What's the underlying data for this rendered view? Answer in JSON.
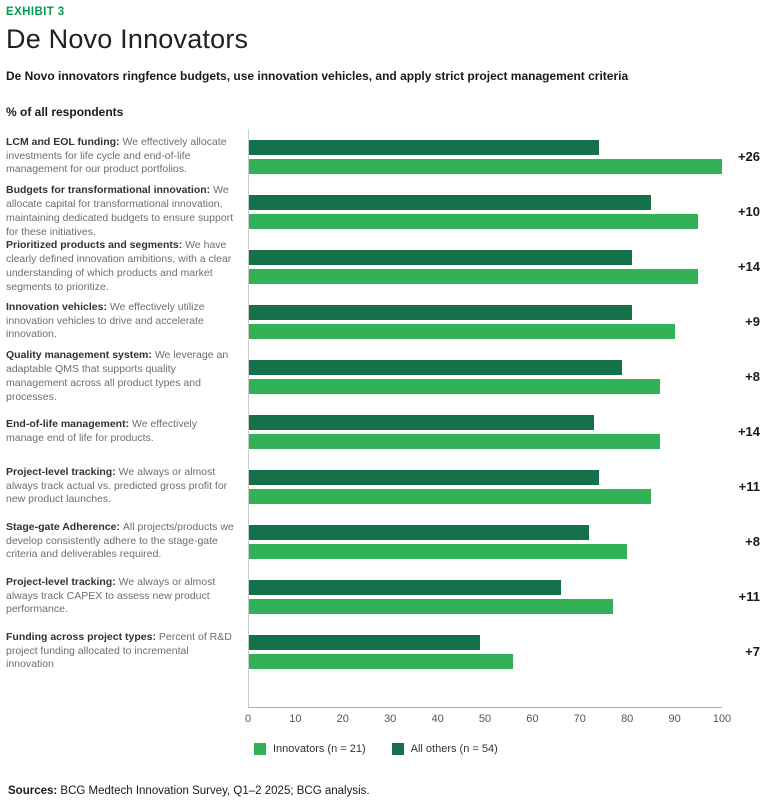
{
  "exhibit_label": "EXHIBIT 3",
  "title": "De Novo Innovators",
  "subtitle": "De Novo innovators ringfence budgets, use innovation vehicles, and apply strict project management criteria",
  "axis_title": "% of all respondents",
  "colors": {
    "accent": "#009B4F",
    "innovators": "#32B256",
    "all_others": "#15714A"
  },
  "chart_data": {
    "type": "bar",
    "orientation": "horizontal",
    "title": "De Novo Innovators",
    "xlabel": "% of all respondents",
    "xlim": [
      0,
      100
    ],
    "x_ticks": [
      0,
      10,
      20,
      30,
      40,
      50,
      60,
      70,
      80,
      90,
      100
    ],
    "grid": false,
    "legend_position": "bottom",
    "series_order": [
      "All others (n = 54)",
      "Innovators (n = 21)"
    ],
    "rows": [
      {
        "label_bold": "LCM and EOL funding:",
        "label_text": "We effectively allocate investments for life cycle and end-of-life management for our product portfolios.",
        "innovators": 100,
        "all_others": 74,
        "delta": "+26"
      },
      {
        "label_bold": "Budgets for transformational innovation:",
        "label_text": "We allocate capital for transformational innovation, maintaining dedicated budgets to ensure support for these initiatives.",
        "innovators": 95,
        "all_others": 85,
        "delta": "+10"
      },
      {
        "label_bold": "Prioritized products and segments:",
        "label_text": "We have clearly defined innovation ambitions, with a clear understanding of which products and market segments to prioritize.",
        "innovators": 95,
        "all_others": 81,
        "delta": "+14"
      },
      {
        "label_bold": "Innovation vehicles:",
        "label_text": "We effectively utilize innovation vehicles to drive and accelerate innovation.",
        "innovators": 90,
        "all_others": 81,
        "delta": "+9"
      },
      {
        "label_bold": "Quality management system:",
        "label_text": "We leverage an adaptable QMS that supports quality management across all product types and processes.",
        "innovators": 87,
        "all_others": 79,
        "delta": "+8"
      },
      {
        "label_bold": "End-of-life management:",
        "label_text": "We effectively manage end of life for products.",
        "innovators": 87,
        "all_others": 73,
        "delta": "+14"
      },
      {
        "label_bold": "Project-level tracking:",
        "label_text": "We always or almost always track actual vs. predicted gross profit for new product launches.",
        "innovators": 85,
        "all_others": 74,
        "delta": "+11"
      },
      {
        "label_bold": "Stage-gate Adherence:",
        "label_text": "All projects/products we develop consistently adhere to the stage-gate criteria and deliverables required.",
        "innovators": 80,
        "all_others": 72,
        "delta": "+8"
      },
      {
        "label_bold": "Project-level tracking:",
        "label_text": "We always or almost always track CAPEX to assess new product performance.",
        "innovators": 77,
        "all_others": 66,
        "delta": "+11"
      },
      {
        "label_bold": "Funding across project types:",
        "label_text": "Percent of R&D project funding allocated to incremental innovation",
        "innovators": 56,
        "all_others": 49,
        "delta": "+7"
      }
    ]
  },
  "legend": [
    {
      "label": "Innovators (n = 21)",
      "color_key": "innovators"
    },
    {
      "label": "All others (n = 54)",
      "color_key": "all_others"
    }
  ],
  "footer": {
    "bold": "Sources:",
    "text": " BCG Medtech Innovation Survey, Q1–2 2025; BCG analysis."
  }
}
